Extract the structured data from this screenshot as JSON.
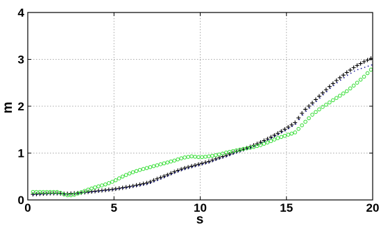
{
  "chart_data": {
    "type": "scatter",
    "xlabel": "s",
    "ylabel": "m",
    "xlim": [
      0,
      20
    ],
    "ylim": [
      0,
      4
    ],
    "xticks": [
      "0",
      "5",
      "10",
      "15",
      "20"
    ],
    "yticks": [
      "0",
      "1",
      "2",
      "3",
      "4"
    ],
    "grid": true,
    "x": [
      0.3,
      0.8,
      1.3,
      1.8,
      2.2,
      2.6,
      3.0,
      3.5,
      4.0,
      4.5,
      5.0,
      5.5,
      6.0,
      6.5,
      7.0,
      7.5,
      8.0,
      8.5,
      9.0,
      9.5,
      10.0,
      10.5,
      11.0,
      11.5,
      12.0,
      12.5,
      13.0,
      13.5,
      14.0,
      14.5,
      15.0,
      15.5,
      16.0,
      16.5,
      17.0,
      17.5,
      18.0,
      18.5,
      19.0,
      19.5,
      19.9
    ],
    "series": [
      {
        "marker": "plus",
        "color": "#000000",
        "values": [
          0.12,
          0.13,
          0.14,
          0.14,
          0.13,
          0.14,
          0.15,
          0.17,
          0.19,
          0.21,
          0.23,
          0.26,
          0.29,
          0.33,
          0.37,
          0.45,
          0.52,
          0.6,
          0.67,
          0.72,
          0.77,
          0.82,
          0.89,
          0.95,
          1.02,
          1.08,
          1.15,
          1.23,
          1.32,
          1.42,
          1.53,
          1.65,
          1.9,
          2.07,
          2.25,
          2.42,
          2.58,
          2.72,
          2.85,
          2.95,
          3.02
        ]
      },
      {
        "marker": "dot",
        "color": "#1a1a99",
        "values": [
          0.11,
          0.12,
          0.13,
          0.13,
          0.12,
          0.13,
          0.14,
          0.16,
          0.18,
          0.2,
          0.22,
          0.25,
          0.28,
          0.31,
          0.35,
          0.42,
          0.5,
          0.58,
          0.65,
          0.7,
          0.75,
          0.8,
          0.87,
          0.93,
          1.0,
          1.06,
          1.13,
          1.21,
          1.3,
          1.4,
          1.5,
          1.62,
          1.86,
          2.03,
          2.21,
          2.38,
          2.53,
          2.66,
          2.77,
          2.83,
          2.88
        ]
      },
      {
        "marker": "circle",
        "color": "#33dd33",
        "values": [
          0.17,
          0.17,
          0.17,
          0.17,
          0.1,
          0.1,
          0.15,
          0.22,
          0.28,
          0.33,
          0.4,
          0.5,
          0.58,
          0.64,
          0.69,
          0.74,
          0.79,
          0.84,
          0.9,
          0.93,
          0.91,
          0.93,
          0.96,
          1.01,
          1.05,
          1.09,
          1.12,
          1.17,
          1.24,
          1.32,
          1.38,
          1.44,
          1.63,
          1.82,
          1.96,
          2.08,
          2.2,
          2.32,
          2.47,
          2.63,
          2.78
        ]
      }
    ]
  }
}
